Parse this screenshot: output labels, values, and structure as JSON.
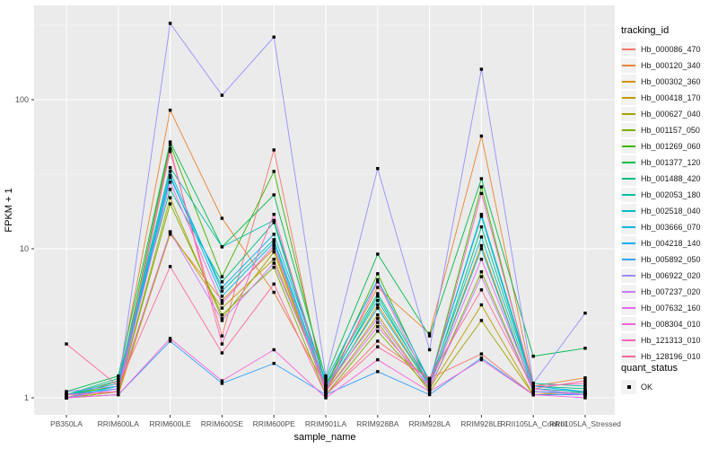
{
  "chart_data": {
    "type": "line",
    "title": "",
    "xlabel": "sample_name",
    "ylabel": "FPKM + 1",
    "y_scale": "log10",
    "yticks": [
      1,
      10,
      100
    ],
    "ytick_labels": [
      "1",
      "10",
      "100"
    ],
    "yminor": [
      3.162,
      31.62,
      316.2
    ],
    "ylim_px_note": "log scale, decade spacing",
    "grid": "on",
    "legend_position": "right",
    "legend_title": "tracking_id",
    "quant_legend_title": "quant_status",
    "quant_legend_label": "OK",
    "point_color": "#000000",
    "categories": [
      "PB350LA",
      "RRIM600LA",
      "RRIM600LE",
      "RRIM600SE",
      "RRIM600PE",
      "RRIM901LA",
      "RRIM928BA",
      "RRIM928LA",
      "RRIM928LE",
      "RRII105LA_Control",
      "RRII105LA_Stressed"
    ],
    "series": [
      {
        "name": "Hb_000086_470",
        "color": "#F8766D",
        "values": [
          1.05,
          1.1,
          45,
          2.6,
          46,
          1.05,
          2.4,
          1.35,
          1.97,
          1.05,
          1.05
        ]
      },
      {
        "name": "Hb_000120_340",
        "color": "#EA8331",
        "values": [
          1.0,
          1.3,
          85,
          16,
          5.1,
          1.2,
          5.5,
          2.7,
          57,
          1.2,
          1.36
        ]
      },
      {
        "name": "Hb_000302_360",
        "color": "#D89000",
        "values": [
          1.0,
          1.1,
          12.5,
          4.5,
          10,
          1.1,
          4.2,
          1.2,
          10.5,
          1.1,
          1.05
        ]
      },
      {
        "name": "Hb_000418_170",
        "color": "#C09B00",
        "values": [
          1.0,
          1.05,
          13,
          4.0,
          8.5,
          1.15,
          3.6,
          1.15,
          4.2,
          1.05,
          1.1
        ]
      },
      {
        "name": "Hb_000627_040",
        "color": "#A3A500",
        "values": [
          1.0,
          1.1,
          22,
          3.4,
          9.5,
          1.1,
          3.2,
          1.1,
          3.3,
          1.05,
          1.05
        ]
      },
      {
        "name": "Hb_001157_050",
        "color": "#7CAE00",
        "values": [
          1.05,
          1.1,
          20,
          3.6,
          7.5,
          1.05,
          2.8,
          1.15,
          7.0,
          1.1,
          1.05
        ]
      },
      {
        "name": "Hb_001269_060",
        "color": "#39B600",
        "values": [
          1.05,
          1.2,
          50,
          6.5,
          33,
          1.2,
          6.8,
          1.25,
          26,
          1.15,
          1.1
        ]
      },
      {
        "name": "Hb_001377_120",
        "color": "#00BB4E",
        "values": [
          1.1,
          1.4,
          52,
          10.3,
          23,
          1.35,
          9.2,
          2.6,
          29.5,
          1.9,
          2.15
        ]
      },
      {
        "name": "Hb_001488_420",
        "color": "#00BF7D",
        "values": [
          1.05,
          1.35,
          25,
          6.0,
          15,
          1.15,
          4.8,
          1.2,
          14,
          1.2,
          1.15
        ]
      },
      {
        "name": "Hb_002053_180",
        "color": "#00C1A3",
        "values": [
          1.05,
          1.3,
          35,
          10.3,
          15.5,
          1.25,
          5.0,
          1.3,
          17,
          1.25,
          1.2
        ]
      },
      {
        "name": "Hb_002518_040",
        "color": "#00BFC4",
        "values": [
          1.05,
          1.25,
          33,
          5.2,
          11.5,
          1.2,
          4.5,
          1.25,
          12,
          1.15,
          1.1
        ]
      },
      {
        "name": "Hb_003666_070",
        "color": "#00BAE0",
        "values": [
          1.0,
          1.2,
          31,
          4.8,
          11,
          1.15,
          4.0,
          1.2,
          10,
          1.1,
          1.08
        ]
      },
      {
        "name": "Hb_004218_140",
        "color": "#00B0F6",
        "values": [
          1.05,
          1.15,
          30,
          5.5,
          12.5,
          1.3,
          6.2,
          1.3,
          16.5,
          1.2,
          1.1
        ]
      },
      {
        "name": "Hb_005892_050",
        "color": "#35A2FF",
        "values": [
          1.0,
          1.05,
          2.4,
          1.25,
          1.7,
          1.05,
          1.5,
          1.05,
          1.85,
          1.05,
          1.05
        ]
      },
      {
        "name": "Hb_006922_020",
        "color": "#9590FF",
        "values": [
          1.1,
          1.2,
          325,
          107,
          263,
          1.4,
          34.5,
          2.1,
          160,
          1.25,
          3.7
        ]
      },
      {
        "name": "Hb_007237_020",
        "color": "#C77CFF",
        "values": [
          1.0,
          1.15,
          13,
          3.3,
          8.0,
          1.2,
          3.4,
          1.15,
          6.5,
          1.1,
          1.05
        ]
      },
      {
        "name": "Hb_007632_160",
        "color": "#E76BF3",
        "values": [
          1.05,
          1.1,
          28,
          4.3,
          10.5,
          1.1,
          3.0,
          1.2,
          8.5,
          1.15,
          1.05
        ]
      },
      {
        "name": "Hb_008304_010",
        "color": "#FA62DB",
        "values": [
          1.0,
          1.05,
          2.5,
          1.3,
          2.1,
          1.0,
          1.8,
          1.1,
          1.8,
          1.05,
          1.0
        ]
      },
      {
        "name": "Hb_121313_010",
        "color": "#FF62BC",
        "values": [
          1.05,
          1.1,
          47,
          2.3,
          17,
          1.1,
          6.0,
          1.2,
          23.5,
          1.2,
          1.25
        ]
      },
      {
        "name": "Hb_128196_010",
        "color": "#FF6A98",
        "values": [
          2.3,
          1.2,
          7.6,
          2.0,
          5.8,
          1.05,
          2.2,
          1.35,
          5.3,
          1.15,
          1.3
        ]
      }
    ]
  }
}
